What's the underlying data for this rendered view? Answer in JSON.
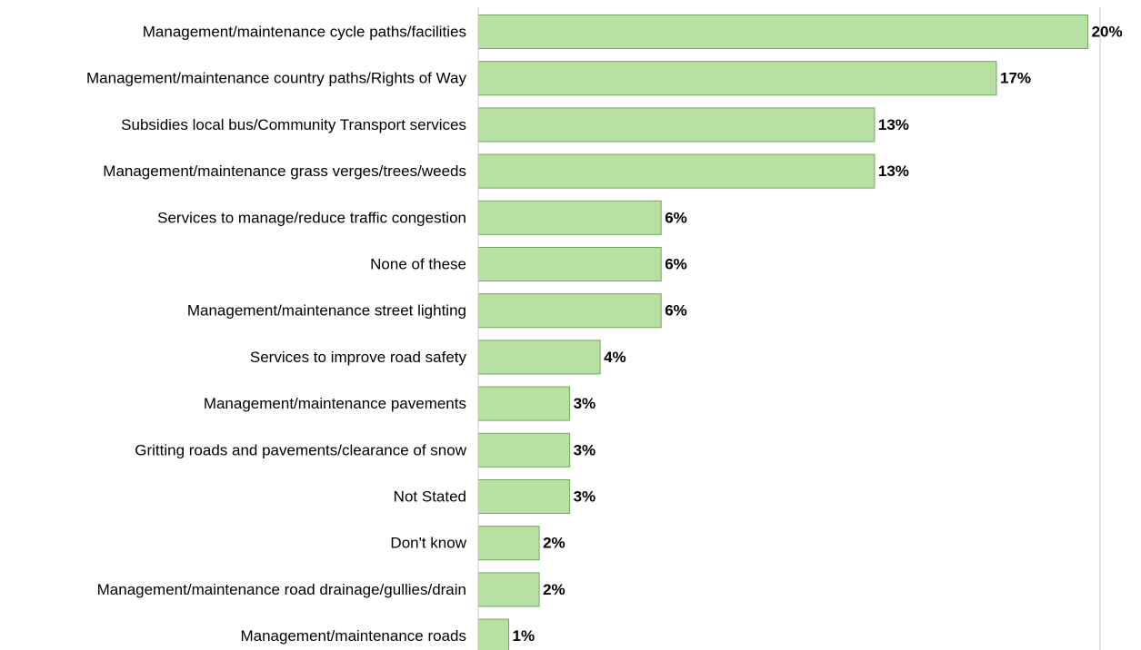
{
  "chart_data": {
    "type": "bar",
    "orientation": "horizontal",
    "categories": [
      "Management/maintenance cycle paths/facilities",
      "Management/maintenance country paths/Rights of Way",
      "Subsidies local bus/Community Transport services",
      "Management/maintenance grass verges/trees/weeds",
      "Services to manage/reduce traffic congestion",
      "None of these",
      "Management/maintenance street lighting",
      "Services to improve road safety",
      "Management/maintenance pavements",
      "Gritting roads and pavements/clearance of snow",
      "Not Stated",
      "Don't know",
      "Management/maintenance road drainage/gullies/drain",
      "Management/maintenance roads"
    ],
    "values": [
      20,
      17,
      13,
      13,
      6,
      6,
      6,
      4,
      3,
      3,
      3,
      2,
      2,
      1
    ],
    "value_labels": [
      "20%",
      "17%",
      "13%",
      "13%",
      "6%",
      "6%",
      "6%",
      "4%",
      "3%",
      "3%",
      "3%",
      "2%",
      "2%",
      "1%"
    ],
    "value_unit": "%",
    "xlim": [
      0,
      20.4
    ],
    "bar_color": "#b8e0a2",
    "bar_border_color": "#6ea85a",
    "grid": false,
    "legend": "none"
  }
}
